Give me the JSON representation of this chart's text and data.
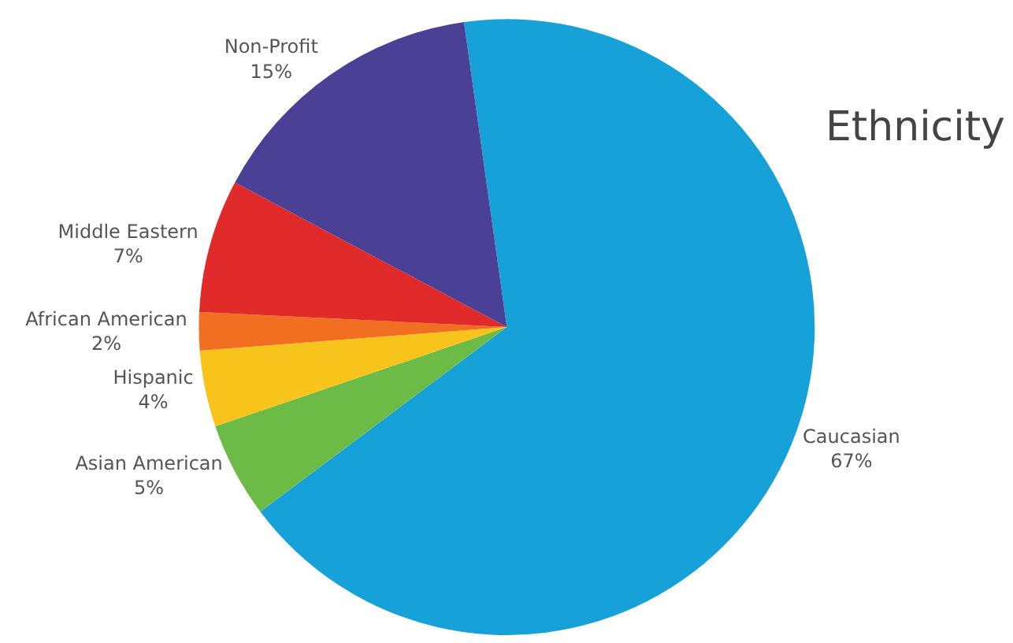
{
  "chart_data": {
    "type": "pie",
    "title": "Ethnicity",
    "categories": [
      "Caucasian",
      "Asian American",
      "Hispanic",
      "African American",
      "Middle Eastern",
      "Non-Profit"
    ],
    "values": [
      67,
      5,
      4,
      2,
      7,
      15
    ],
    "value_labels": [
      "67%",
      "5%",
      "4%",
      "2%",
      "7%",
      "15%"
    ],
    "colors": [
      "#16a2d9",
      "#6cbb47",
      "#f8c31a",
      "#f26f22",
      "#e12a2a",
      "#4a4196"
    ],
    "legend": false
  }
}
